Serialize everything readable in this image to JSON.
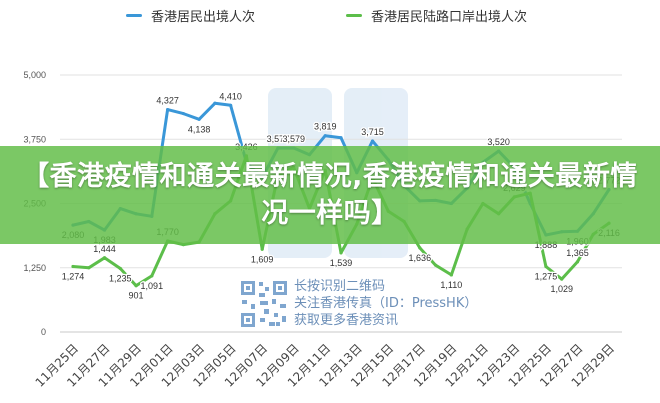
{
  "legend": [
    {
      "name": "香港居民出境人次",
      "color": "#3a97d8"
    },
    {
      "name": "香港居民陆路口岸出境人次",
      "color": "#5cbe4a"
    }
  ],
  "banner": {
    "title": "【香港疫情和通关最新情况,香港疫情和通关最新情况一样吗】"
  },
  "watermark": {
    "line1": "长按识别二维码",
    "line2": "关注香港传真（ID：PressHK）",
    "line3": "获取更多香港资讯",
    "qr_icon": "qr-code"
  },
  "chart_data": {
    "type": "line",
    "title": "",
    "xlabel": "",
    "ylabel": "",
    "ylim": [
      0,
      5000
    ],
    "yticks": [
      0,
      1250,
      2500,
      3750,
      5000
    ],
    "ytick_labels": [
      "0",
      "1,250",
      "2,500",
      "3,750",
      "5,000"
    ],
    "grid": true,
    "legend_position": "top",
    "categories": [
      "11月25日",
      "11月26日",
      "11月27日",
      "11月28日",
      "11月29日",
      "11月30日",
      "12月01日",
      "12月02日",
      "12月03日",
      "12月04日",
      "12月05日",
      "12月06日",
      "12月07日",
      "12月08日",
      "12月09日",
      "12月10日",
      "12月11日",
      "12月12日",
      "12月13日",
      "12月14日",
      "12月15日",
      "12月16日",
      "12月17日",
      "12月18日",
      "12月19日",
      "12月20日",
      "12月21日",
      "12月22日",
      "12月23日",
      "12月24日",
      "12月25日",
      "12月26日",
      "12月27日",
      "12月28日",
      "12月29日"
    ],
    "xtick_labels": [
      "11月25日",
      "11月27日",
      "11月29日",
      "12月01日",
      "12月03日",
      "12月05日",
      "12月07日",
      "12月09日",
      "12月11日",
      "12月13日",
      "12月15日",
      "12月17日",
      "12月19日",
      "12月21日",
      "12月23日",
      "12月25日",
      "12月27日",
      "12月29日"
    ],
    "series": [
      {
        "name": "香港居民出境人次",
        "color": "#3a97d8",
        "values": [
          2080,
          2150,
          1983,
          2400,
          2300,
          2250,
          4327,
          4250,
          4138,
          4450,
          4410,
          3300,
          3000,
          3577,
          3579,
          3450,
          3819,
          3780,
          3100,
          3715,
          3350,
          2850,
          2550,
          2560,
          2500,
          2800,
          3300,
          3520,
          3200,
          2500,
          1888,
          1950,
          1960,
          2300,
          2772
        ]
      },
      {
        "name": "香港居民陆路口岸出境人次",
        "color": "#5cbe4a",
        "values": [
          1274,
          1250,
          1444,
          1235,
          901,
          1091,
          1770,
          1700,
          1750,
          2300,
          2550,
          3426,
          1609,
          3050,
          3200,
          2400,
          3150,
          1539,
          2100,
          3000,
          2350,
          2150,
          1636,
          1300,
          1110,
          2000,
          2500,
          2300,
          2629,
          2700,
          1275,
          1029,
          1365,
          1900,
          2116
        ]
      }
    ],
    "data_labels": [
      {
        "series": 0,
        "index": 0,
        "text": "2,080",
        "pos": "below"
      },
      {
        "series": 0,
        "index": 2,
        "text": "1,983",
        "pos": "below"
      },
      {
        "series": 0,
        "index": 6,
        "text": "4,327",
        "pos": "above"
      },
      {
        "series": 0,
        "index": 8,
        "text": "4,138",
        "pos": "below"
      },
      {
        "series": 0,
        "index": 10,
        "text": "4,410",
        "pos": "above"
      },
      {
        "series": 0,
        "index": 13,
        "text": "3,577",
        "pos": "above"
      },
      {
        "series": 0,
        "index": 14,
        "text": "3,579",
        "pos": "above"
      },
      {
        "series": 0,
        "index": 16,
        "text": "3,819",
        "pos": "above"
      },
      {
        "series": 0,
        "index": 19,
        "text": "3,715",
        "pos": "above"
      },
      {
        "series": 0,
        "index": 27,
        "text": "3,520",
        "pos": "above"
      },
      {
        "series": 0,
        "index": 30,
        "text": "1,888",
        "pos": "below"
      },
      {
        "series": 0,
        "index": 32,
        "text": "1,960",
        "pos": "below"
      },
      {
        "series": 0,
        "index": 34,
        "text": "2,772",
        "pos": "above"
      },
      {
        "series": 1,
        "index": 0,
        "text": "1,274",
        "pos": "below"
      },
      {
        "series": 1,
        "index": 2,
        "text": "1,444",
        "pos": "above"
      },
      {
        "series": 1,
        "index": 3,
        "text": "1,235",
        "pos": "below"
      },
      {
        "series": 1,
        "index": 4,
        "text": "901",
        "pos": "below"
      },
      {
        "series": 1,
        "index": 5,
        "text": "1,091",
        "pos": "below"
      },
      {
        "series": 1,
        "index": 6,
        "text": "1,770",
        "pos": "above"
      },
      {
        "series": 1,
        "index": 11,
        "text": "3,426",
        "pos": "above"
      },
      {
        "series": 1,
        "index": 12,
        "text": "1,609",
        "pos": "below"
      },
      {
        "series": 1,
        "index": 17,
        "text": "1,539",
        "pos": "below"
      },
      {
        "series": 1,
        "index": 22,
        "text": "1,636",
        "pos": "below"
      },
      {
        "series": 1,
        "index": 24,
        "text": "1,110",
        "pos": "below"
      },
      {
        "series": 1,
        "index": 28,
        "text": "2,629",
        "pos": "above"
      },
      {
        "series": 1,
        "index": 30,
        "text": "1,275",
        "pos": "below"
      },
      {
        "series": 1,
        "index": 31,
        "text": "1,029",
        "pos": "below"
      },
      {
        "series": 1,
        "index": 32,
        "text": "1,365",
        "pos": "above"
      },
      {
        "series": 1,
        "index": 34,
        "text": "2,116",
        "pos": "below"
      }
    ]
  }
}
